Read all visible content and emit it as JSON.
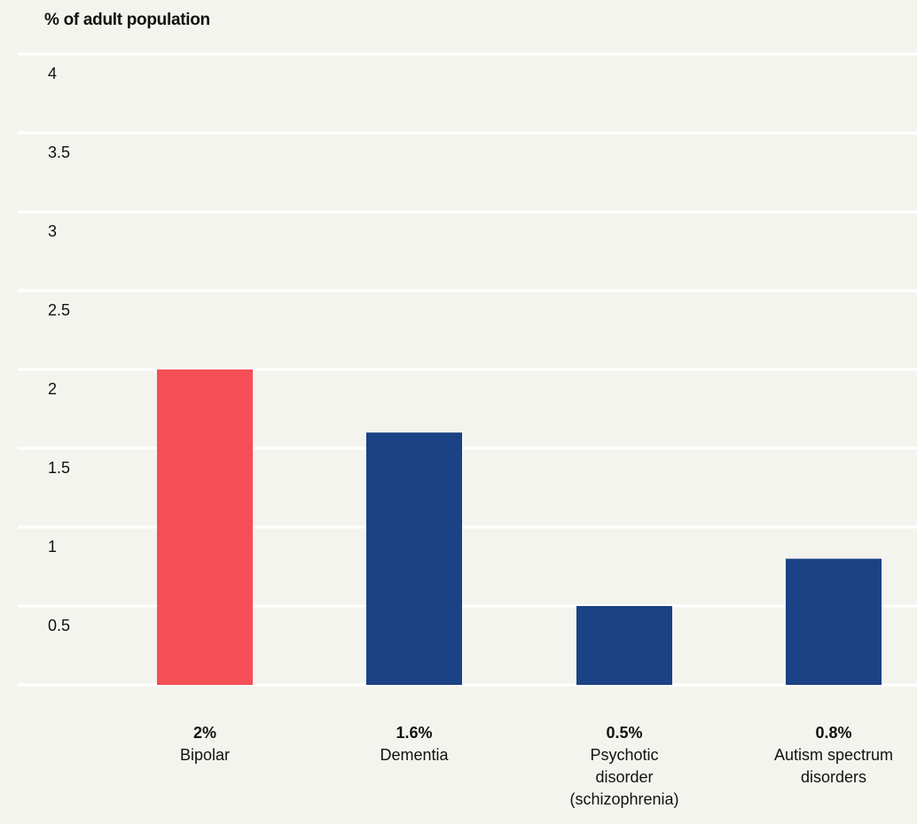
{
  "chart_data": {
    "type": "bar",
    "ylabel": "% of adult population",
    "ylim": [
      0,
      4
    ],
    "yticks": [
      0.5,
      1,
      1.5,
      2,
      2.5,
      3,
      3.5,
      4
    ],
    "ytick_labels": [
      "0.5",
      "1",
      "1.5",
      "2",
      "2.5",
      "3",
      "3.5",
      "4"
    ],
    "grid": true,
    "categories": [
      "Bipolar",
      "Dementia",
      "Psychotic disorder (schizophrenia)",
      "Autism spectrum disorders"
    ],
    "category_lines": [
      [
        "Bipolar"
      ],
      [
        "Dementia"
      ],
      [
        "Psychotic",
        "disorder",
        "(schizophrenia)"
      ],
      [
        "Autism spectrum",
        "disorders"
      ]
    ],
    "values": [
      2,
      1.6,
      0.5,
      0.8
    ],
    "value_labels": [
      "2%",
      "1.6%",
      "0.5%",
      "0.8%"
    ],
    "colors": [
      "#f54e55",
      "#1a4285",
      "#1a4285",
      "#1a4285"
    ]
  }
}
